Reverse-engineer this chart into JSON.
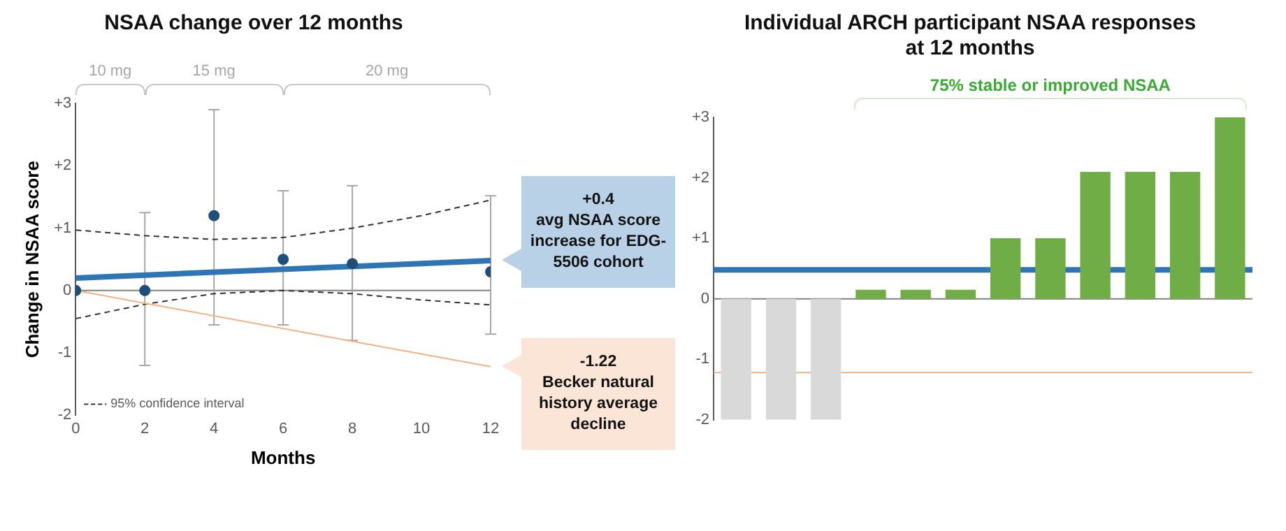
{
  "chart_data": [
    {
      "type": "line",
      "title": "NSAA change over 12 months",
      "xlabel": "Months",
      "ylabel": "Change in NSAA score",
      "xlim": [
        0,
        12
      ],
      "xticks": [
        0,
        2,
        4,
        6,
        8,
        10,
        12
      ],
      "ylim": [
        -2,
        3
      ],
      "yticks": [
        {
          "value": -2,
          "label": "-2"
        },
        {
          "value": -1,
          "label": "-1"
        },
        {
          "value": 0,
          "label": "0"
        },
        {
          "value": 1,
          "label": "+1"
        },
        {
          "value": 2,
          "label": "+2"
        },
        {
          "value": 3,
          "label": "+3"
        }
      ],
      "grid": false,
      "legend": "bottom left",
      "ref_lines": [
        {
          "axis": "y",
          "value": 0,
          "color": "#808080"
        }
      ],
      "annotations": [
        "10 mg",
        "15 mg",
        "20 mg",
        {
          "text": "+0.4\navg NSAA score increase for EDG-5506 cohort",
          "x": 12,
          "y": 0.48
        },
        {
          "text": "-1.22\nBecker natural history average decline",
          "x": 12,
          "y": -1.22
        }
      ],
      "series": [
        {
          "type": "scatter",
          "x": [
            0,
            2,
            4,
            6,
            8,
            12
          ],
          "values": [
            0,
            0,
            1.2,
            0.5,
            0.43,
            0.3
          ],
          "errors": [
            null,
            [
              -1.2,
              1.25
            ],
            [
              -0.55,
              2.9
            ],
            [
              -0.55,
              1.6
            ],
            [
              -0.8,
              1.68
            ],
            [
              -0.7,
              1.52
            ]
          ],
          "color": "#1f4e79",
          "marker": "circle"
        },
        {
          "type": "line",
          "x": [
            0,
            12
          ],
          "values": [
            0.2,
            0.48
          ],
          "color": "#2e75b6",
          "marker": "none"
        },
        {
          "type": "line",
          "x": [
            0,
            12
          ],
          "values": [
            0,
            -1.22
          ],
          "color": "#f4b183",
          "marker": "none"
        },
        {
          "type": "line",
          "name": "95% confidence interval",
          "x": [
            0,
            2,
            4,
            6,
            8,
            10,
            12
          ],
          "values": [
            0.97,
            0.88,
            0.82,
            0.85,
            1.0,
            1.2,
            1.45
          ],
          "color": "#333333",
          "marker": "none",
          "line_style": "dashed"
        },
        {
          "type": "line",
          "x": [
            0,
            2,
            4,
            6,
            8,
            10,
            12
          ],
          "values": [
            -0.45,
            -0.22,
            -0.05,
            0,
            -0.05,
            -0.15,
            -0.23
          ],
          "color": "#333333",
          "marker": "none",
          "line_style": "dashed"
        }
      ]
    },
    {
      "type": "bar",
      "title": "Individual ARCH participant NSAA responses\nat 12 months",
      "categories": [
        null,
        null,
        null,
        null,
        null,
        null,
        null,
        null,
        null,
        null,
        null,
        null
      ],
      "values": [
        -2,
        -2,
        -2,
        0.15,
        0.15,
        0.15,
        1,
        1,
        2.1,
        2.1,
        2.1,
        3
      ],
      "colors": [
        "#d9d9d9",
        "#d9d9d9",
        "#d9d9d9",
        "#70ad47",
        "#70ad47",
        "#70ad47",
        "#70ad47",
        "#70ad47",
        "#70ad47",
        "#70ad47",
        "#70ad47",
        "#70ad47"
      ],
      "ylim": [
        -2,
        3
      ],
      "yticks": [
        {
          "value": -2,
          "label": "-2"
        },
        {
          "value": -1,
          "label": "-1"
        },
        {
          "value": 0,
          "label": "0"
        },
        {
          "value": 1,
          "label": "+1"
        },
        {
          "value": 2,
          "label": "+2"
        },
        {
          "value": 3,
          "label": "+3"
        }
      ],
      "tick_labels": "y",
      "grid": false,
      "ref_lines": [
        {
          "axis": "y",
          "value": 0,
          "color": "#808080"
        },
        {
          "axis": "y",
          "value": 0.48,
          "color": "#2e75b6"
        },
        {
          "axis": "y",
          "value": -1.22,
          "color": "#f4b183"
        }
      ],
      "annotations": [
        "75% stable or improved NSAA"
      ]
    }
  ]
}
